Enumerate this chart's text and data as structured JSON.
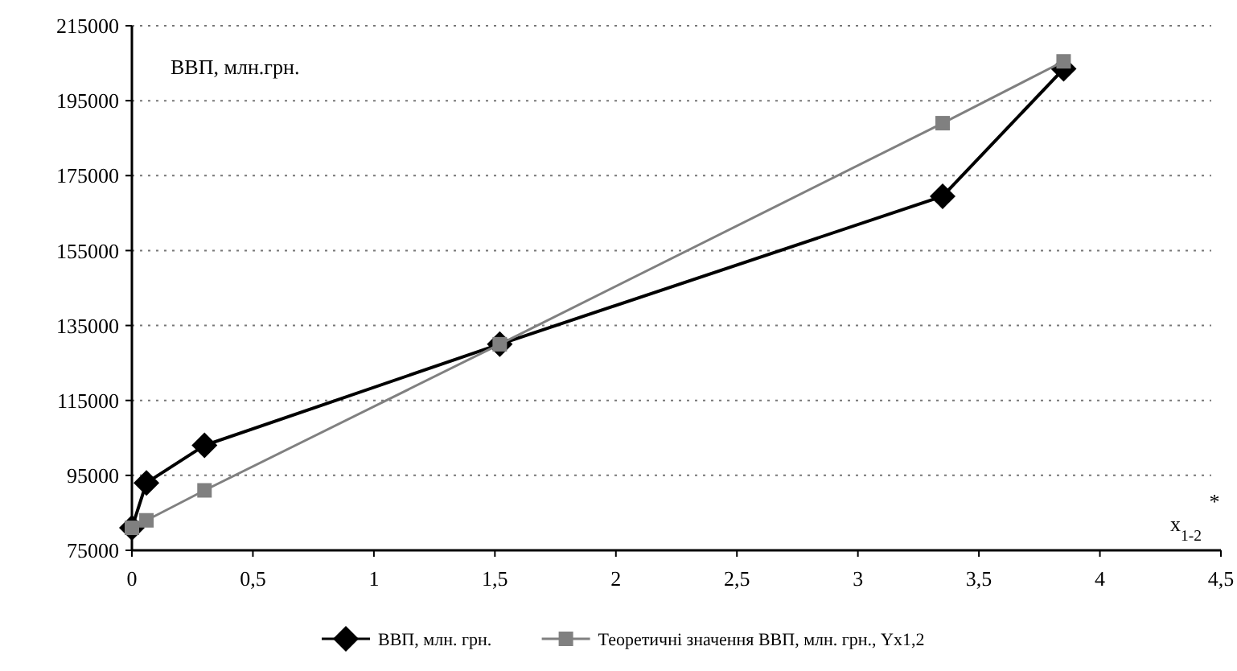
{
  "chart_data": {
    "type": "line",
    "ylabel": "ВВП, млн.грн.",
    "xlabel": "x$_{1-2}$",
    "xlim": [
      0,
      4.5
    ],
    "xticks": [
      0,
      {
        "value": 0.5,
        "label": "0,5"
      },
      1,
      {
        "value": 1.5,
        "label": "1,5"
      },
      2,
      {
        "value": 2.5,
        "label": "2,5"
      },
      3,
      {
        "value": 3.5,
        "label": "3,5"
      },
      4,
      {
        "value": 4.5,
        "label": "4,5"
      }
    ],
    "ylim": [
      75000,
      215000
    ],
    "yticks": [
      75000,
      95000,
      115000,
      135000,
      155000,
      175000,
      195000,
      215000
    ],
    "grid": "y",
    "legend": "bottom",
    "line_style": "solid",
    "annotations": [
      "*"
    ],
    "series": [
      {
        "name": "ВВП, млн. грн.",
        "color": "#000000",
        "marker": "diamond",
        "x": [
          0,
          0.06,
          0.3,
          1.52,
          3.35,
          3.85
        ],
        "values": [
          81000,
          93000,
          103000,
          130000,
          169500,
          203500
        ]
      },
      {
        "name": "Теоретичні значення ВВП, млн. грн., Yx1,2",
        "color": "#808080",
        "marker": "square",
        "x": [
          0,
          0.06,
          0.3,
          1.52,
          3.35,
          3.85
        ],
        "values": [
          81000,
          83000,
          91000,
          130000,
          189000,
          205500
        ]
      }
    ]
  }
}
